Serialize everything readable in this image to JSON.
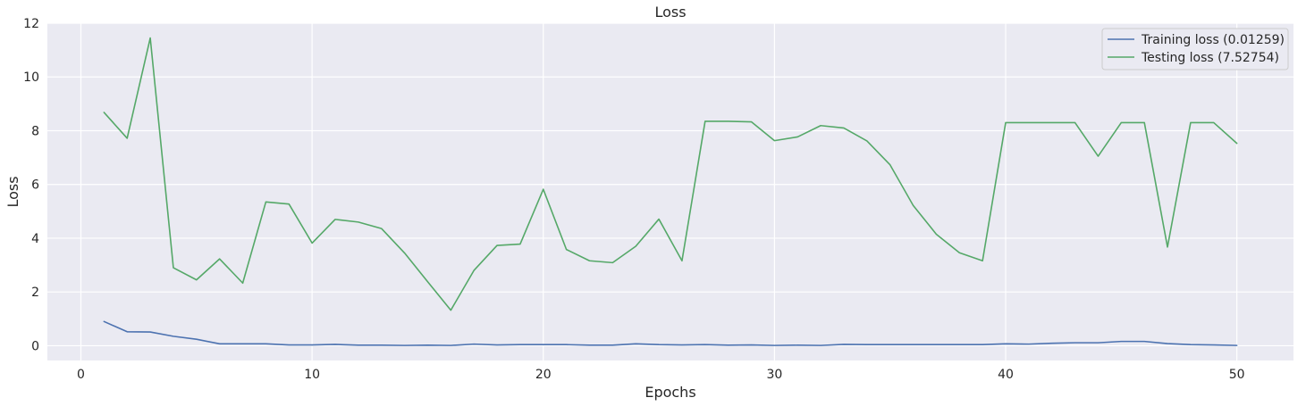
{
  "chart_data": {
    "type": "line",
    "title": "Loss",
    "xlabel": "Epochs",
    "ylabel": "Loss",
    "xlim": [
      -1.45,
      52.45
    ],
    "ylim": [
      -0.55,
      12
    ],
    "xticks": [
      0,
      10,
      20,
      30,
      40,
      50
    ],
    "yticks": [
      0,
      2,
      4,
      6,
      8,
      10,
      12
    ],
    "grid": true,
    "legend_position": "top-right",
    "x": [
      1,
      2,
      3,
      4,
      5,
      6,
      7,
      8,
      9,
      10,
      11,
      12,
      13,
      14,
      15,
      16,
      17,
      18,
      19,
      20,
      21,
      22,
      23,
      24,
      25,
      26,
      27,
      28,
      29,
      30,
      31,
      32,
      33,
      34,
      35,
      36,
      37,
      38,
      39,
      40,
      41,
      42,
      43,
      44,
      45,
      46,
      47,
      48,
      49,
      50
    ],
    "series": [
      {
        "name": "Training loss (0.01259)",
        "color": "#4c72b0",
        "values": [
          0.9,
          0.52,
          0.51,
          0.35,
          0.24,
          0.07,
          0.07,
          0.07,
          0.03,
          0.03,
          0.05,
          0.02,
          0.02,
          0.01,
          0.02,
          0.01,
          0.06,
          0.03,
          0.04,
          0.04,
          0.04,
          0.02,
          0.02,
          0.07,
          0.04,
          0.03,
          0.04,
          0.02,
          0.03,
          0.01,
          0.02,
          0.01,
          0.05,
          0.04,
          0.04,
          0.04,
          0.04,
          0.04,
          0.04,
          0.07,
          0.06,
          0.09,
          0.11,
          0.11,
          0.16,
          0.16,
          0.08,
          0.04,
          0.03,
          0.01
        ]
      },
      {
        "name": "Testing loss (7.52754)",
        "color": "#55a868",
        "values": [
          8.68,
          7.72,
          11.45,
          2.9,
          2.45,
          3.23,
          2.33,
          5.35,
          5.27,
          3.82,
          4.7,
          4.6,
          4.36,
          3.45,
          2.38,
          1.32,
          2.8,
          3.73,
          3.78,
          5.82,
          3.58,
          3.16,
          3.09,
          3.7,
          4.71,
          3.16,
          8.35,
          8.35,
          8.33,
          7.63,
          7.77,
          8.19,
          8.1,
          7.62,
          6.73,
          5.22,
          4.15,
          3.46,
          3.16,
          8.3,
          8.3,
          8.3,
          8.3,
          7.05,
          8.3,
          8.3,
          3.67,
          8.3,
          8.3,
          7.53
        ]
      }
    ]
  }
}
